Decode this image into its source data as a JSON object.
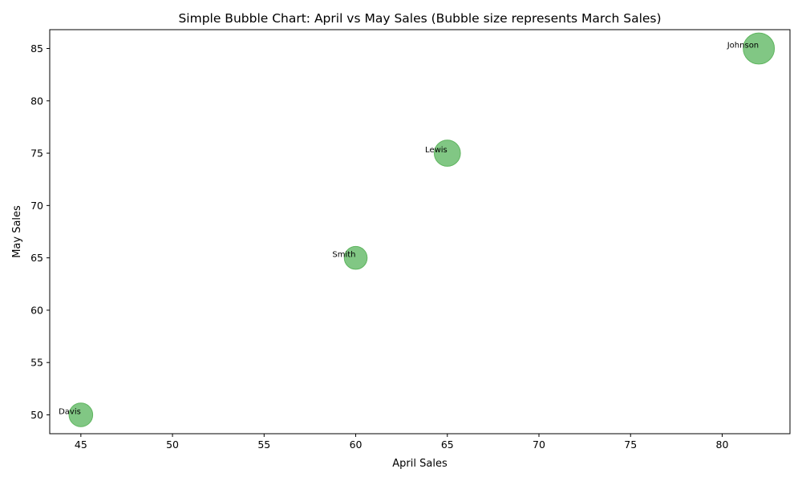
{
  "chart_data": {
    "type": "scatter",
    "title": "Simple Bubble Chart: April vs May Sales (Bubble size represents March Sales)",
    "xlabel": "April Sales",
    "ylabel": "May Sales",
    "xlim": [
      43.3,
      83.7
    ],
    "ylim": [
      48.2,
      86.8
    ],
    "xticks": [
      45,
      50,
      55,
      60,
      65,
      70,
      75,
      80
    ],
    "yticks": [
      50,
      55,
      60,
      65,
      70,
      75,
      80,
      85
    ],
    "grid": false,
    "bubble_color": "#4CAF50",
    "bubble_edge_color": "#5fb55f",
    "bubble_opacity": 0.7,
    "points": [
      {
        "label": "Johnson",
        "x": 82,
        "y": 85,
        "size": 78
      },
      {
        "label": "Lewis",
        "x": 65,
        "y": 75,
        "size": 55
      },
      {
        "label": "Smith",
        "x": 60,
        "y": 65,
        "size": 42
      },
      {
        "label": "Davis",
        "x": 45,
        "y": 50,
        "size": 45
      }
    ]
  }
}
